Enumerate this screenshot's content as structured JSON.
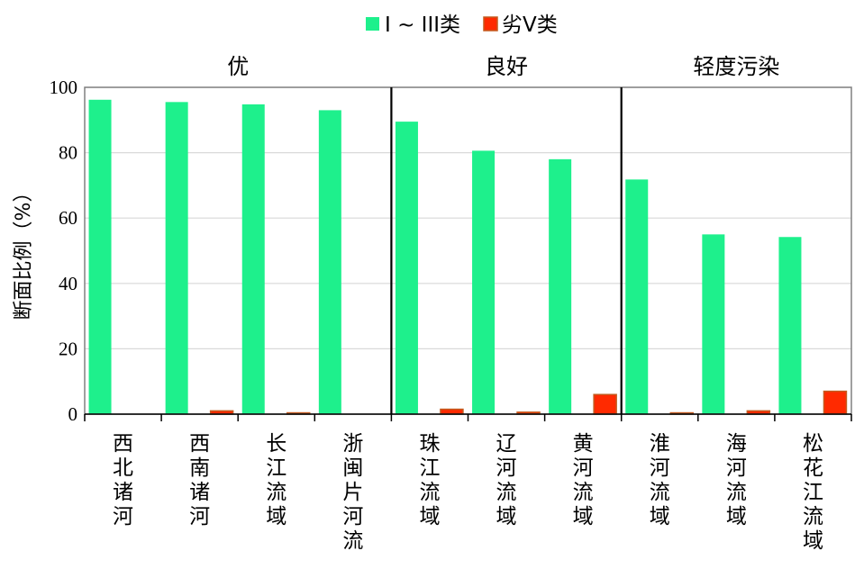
{
  "colors": {
    "good": "#1ef08c",
    "bad": "#ff2a00",
    "bad_border": "#c35a1e",
    "grid": "#d9d9d9",
    "frame": "#808080"
  },
  "chart_data": {
    "type": "bar",
    "ylabel": "断面比例（%）",
    "ylim": [
      0,
      100
    ],
    "yticks": [
      0,
      20,
      40,
      60,
      80,
      100
    ],
    "grid": true,
    "legend_position": "top-center",
    "categories": [
      "西北诸河",
      "西南诸河",
      "长江流域",
      "浙闽片河流",
      "珠江流域",
      "辽河流域",
      "黄河流域",
      "淮河流域",
      "海河流域",
      "松花江流域"
    ],
    "series": [
      {
        "name": "I ~ III类",
        "color_key": "good",
        "values": [
          96.2,
          95.5,
          94.8,
          93.0,
          89.5,
          80.6,
          78.0,
          71.8,
          55.0,
          54.2
        ]
      },
      {
        "name": "劣V类",
        "color_key": "bad",
        "values": [
          0,
          1.0,
          0.4,
          0,
          1.5,
          0.6,
          6.0,
          0.4,
          1.0,
          7.0
        ]
      }
    ],
    "groups": [
      {
        "label": "优",
        "count": 4
      },
      {
        "label": "良好",
        "count": 3
      },
      {
        "label": "轻度污染",
        "count": 3
      }
    ]
  }
}
